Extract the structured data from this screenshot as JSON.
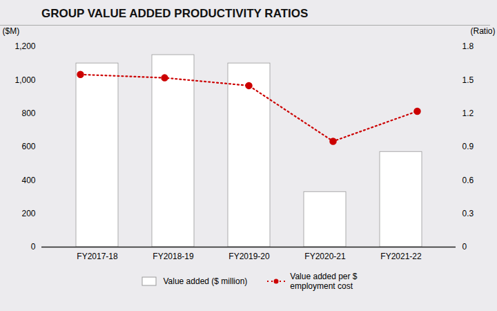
{
  "chart_data": {
    "type": "bar",
    "title": "GROUP VALUE ADDED PRODUCTIVITY RATIOS",
    "categories": [
      "FY2017-18",
      "FY2018-19",
      "FY2019-20",
      "FY2020-21",
      "FY2021-22"
    ],
    "series": [
      {
        "name": "Value added ($ million)",
        "type": "bar",
        "color": "#ffffff",
        "values": [
          1100,
          1150,
          1100,
          330,
          570
        ]
      },
      {
        "name": "Value added per $\nemployment cost",
        "type": "line",
        "axis": "y2",
        "color": "#cc0000",
        "line_style": "dotted",
        "marker": "o",
        "values": [
          1.55,
          1.52,
          1.45,
          0.95,
          1.22
        ]
      }
    ],
    "ylabel": "($M)",
    "y2label": "(Ratio)",
    "ylim": [
      0,
      1200
    ],
    "yticks": [
      0,
      200,
      400,
      600,
      800,
      {
        "value": 1000,
        "label": "1,000"
      },
      {
        "value": 1200,
        "label": "1,200"
      }
    ],
    "y2lim": [
      0,
      1.8
    ],
    "y2ticks": [
      0,
      0.3,
      0.6,
      0.9,
      1.2,
      1.5,
      1.8
    ],
    "grid": false,
    "legend": "bottom"
  }
}
